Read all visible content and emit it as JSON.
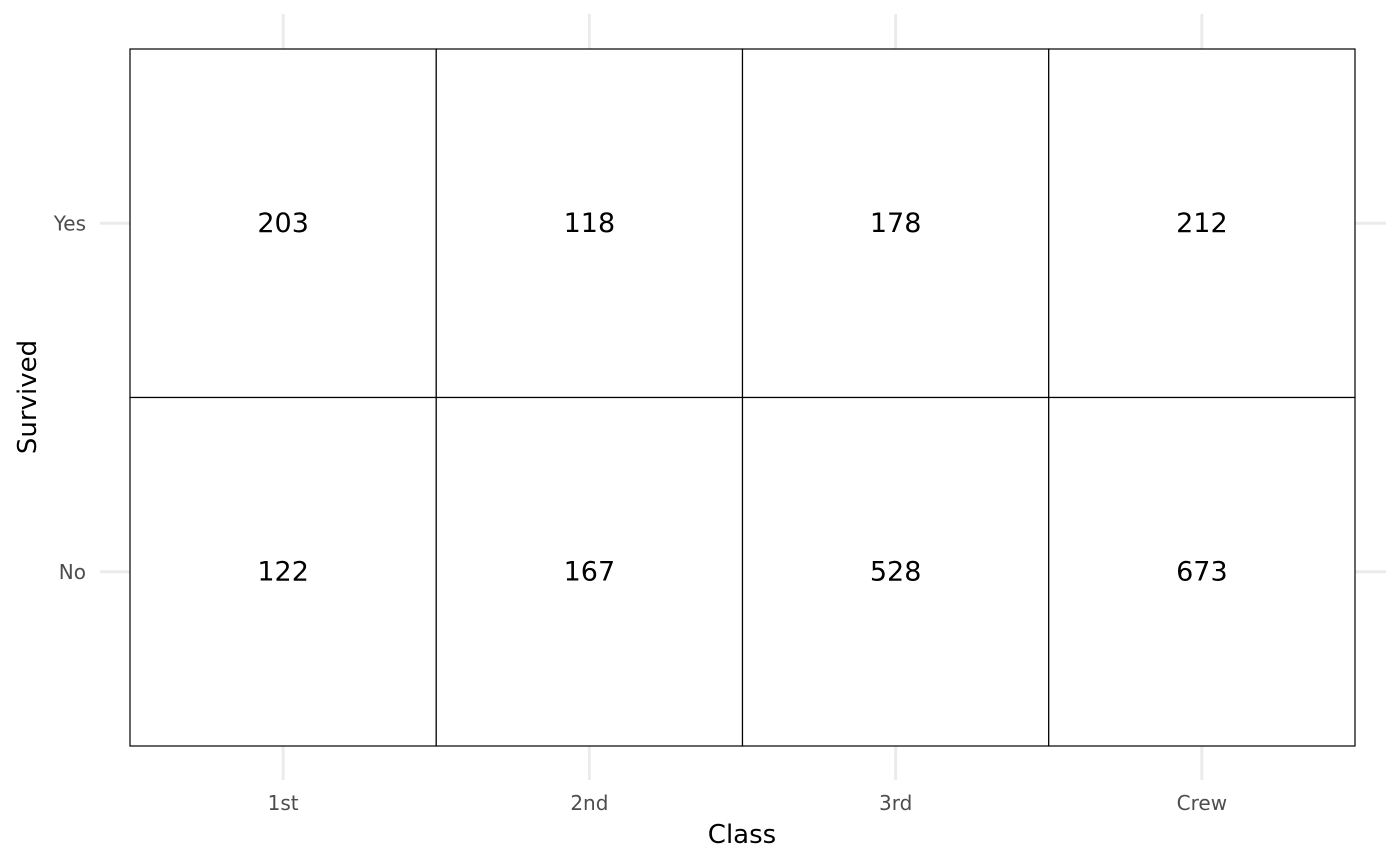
{
  "chart_data": {
    "type": "table",
    "xlabel": "Class",
    "ylabel": "Survived",
    "x_categories": [
      "1st",
      "2nd",
      "3rd",
      "Crew"
    ],
    "y_categories": [
      "No",
      "Yes"
    ],
    "cells": [
      {
        "x": "1st",
        "y": "Yes",
        "value": 203
      },
      {
        "x": "2nd",
        "y": "Yes",
        "value": 118
      },
      {
        "x": "3rd",
        "y": "Yes",
        "value": 178
      },
      {
        "x": "Crew",
        "y": "Yes",
        "value": 212
      },
      {
        "x": "1st",
        "y": "No",
        "value": 122
      },
      {
        "x": "2nd",
        "y": "No",
        "value": 167
      },
      {
        "x": "3rd",
        "y": "No",
        "value": 528
      },
      {
        "x": "Crew",
        "y": "No",
        "value": 673
      }
    ],
    "grid": true,
    "legend": "none"
  }
}
